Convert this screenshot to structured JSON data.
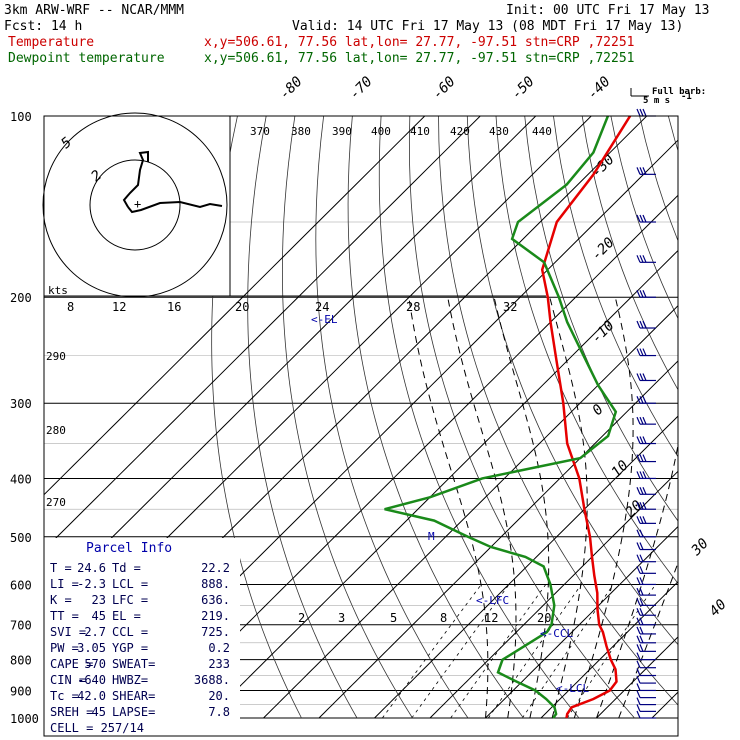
{
  "header": {
    "model": "3km ARW-WRF -- NCAR/MMM",
    "init": "Init: 00 UTC Fri 17 May 13",
    "fcst": "Fcst:    14 h",
    "valid": "Valid: 14 UTC Fri 17 May 13 (08 MDT Fri 17 May 13)",
    "temp_label": "Temperature",
    "temp_info": "x,y=506.61, 77.56   lat,lon= 27.77, -97.51   stn=CRP ,72251",
    "dew_label": "Dewpoint temperature",
    "dew_info": "x,y=506.61, 77.56   lat,lon= 27.77, -97.51   stn=CRP ,72251"
  },
  "colors": {
    "temperature": "#e60000",
    "dewpoint": "#1a8a1a",
    "info_text": "#000066",
    "barbs": "#000080",
    "frame": "#000000"
  },
  "barb_legend": {
    "line1": "Full barb:",
    "line2": "5 m s",
    "sup": "-1"
  },
  "hodograph": {
    "ring_labels": [
      "5",
      "2"
    ],
    "kts_label": "kts"
  },
  "mixing_ratio_labels": [
    "8",
    "12",
    "16",
    "20",
    "24",
    "28",
    "32"
  ],
  "theta_labels": [
    "370",
    "380",
    "390",
    "400",
    "410",
    "420",
    "430",
    "440"
  ],
  "theta_left_labels": [
    "290",
    "280",
    "270"
  ],
  "mixing_lower_labels": [
    "2",
    "3",
    "5",
    "8",
    "12",
    "20"
  ],
  "level_markers": {
    "el": "<-EL",
    "lfc": "<-LFC",
    "ccl": "<-CCL",
    "lcl": "<-LCL",
    "m": "M"
  },
  "parcel_info": {
    "title": "Parcel Info",
    "rows": [
      [
        "T =",
        "24.6",
        "Td =",
        "22.2"
      ],
      [
        "LI =",
        "-2.3",
        "LCL =",
        "888."
      ],
      [
        "K =",
        "23",
        "LFC =",
        "636."
      ],
      [
        "TT =",
        "45",
        "EL =",
        "219."
      ],
      [
        "SVI =",
        "2.7",
        "CCL =",
        "725."
      ],
      [
        "PW =",
        "3.05",
        "YGP =",
        "0.2"
      ],
      [
        "CAPE =",
        "570",
        "SWEAT=",
        "233"
      ],
      [
        "CIN =",
        "-640",
        "HWBZ=",
        "3688."
      ],
      [
        "Tc =",
        "42.0",
        "SHEAR=",
        "20."
      ],
      [
        "SREH =",
        "45",
        "LAPSE=",
        "7.8"
      ]
    ],
    "cell": "CELL = 257/14"
  },
  "chart_data": {
    "type": "line",
    "title": "",
    "ylabel": "",
    "xlabel": "",
    "pressure_levels": [
      "100",
      "200",
      "300",
      "400",
      "500",
      "600",
      "700",
      "800",
      "900",
      "1000"
    ],
    "isotherm_labels": [
      "-80",
      "-70",
      "-60",
      "-50",
      "-40",
      "-30",
      "-20",
      "-10",
      "0",
      "10",
      "20",
      "30",
      "40"
    ],
    "y_scale": "log-pressure",
    "grid": true,
    "series": [
      {
        "name": "Temperature",
        "points": [
          [
            1000,
            24.6
          ],
          [
            985,
            24.0
          ],
          [
            960,
            23.6
          ],
          [
            930,
            26.0
          ],
          [
            900,
            27.4
          ],
          [
            870,
            27.0
          ],
          [
            830,
            24.6
          ],
          [
            800,
            22.0
          ],
          [
            760,
            18.8
          ],
          [
            720,
            15.6
          ],
          [
            700,
            13.6
          ],
          [
            660,
            10.5
          ],
          [
            620,
            7.5
          ],
          [
            580,
            3.8
          ],
          [
            540,
            0.0
          ],
          [
            500,
            -4.0
          ],
          [
            450,
            -10.0
          ],
          [
            400,
            -16.5
          ],
          [
            350,
            -25.0
          ],
          [
            300,
            -33.0
          ],
          [
            250,
            -43.0
          ],
          [
            220,
            -50.0
          ],
          [
            200,
            -55.0
          ],
          [
            180,
            -61.0
          ],
          [
            150,
            -67.0
          ],
          [
            125,
            -69.0
          ],
          [
            100,
            -73.0
          ]
        ]
      },
      {
        "name": "Dewpoint temperature",
        "points": [
          [
            1000,
            22.2
          ],
          [
            985,
            22.0
          ],
          [
            960,
            20.5
          ],
          [
            930,
            17.5
          ],
          [
            900,
            14.0
          ],
          [
            870,
            9.0
          ],
          [
            840,
            4.0
          ],
          [
            800,
            2.5
          ],
          [
            760,
            4.0
          ],
          [
            720,
            5.5
          ],
          [
            700,
            5.0
          ],
          [
            650,
            2.0
          ],
          [
            600,
            -2.5
          ],
          [
            560,
            -7.0
          ],
          [
            540,
            -12.0
          ],
          [
            520,
            -20.0
          ],
          [
            500,
            -26.0
          ],
          [
            470,
            -35.0
          ],
          [
            450,
            -46.0
          ],
          [
            430,
            -40.0
          ],
          [
            400,
            -34.0
          ],
          [
            370,
            -20.0
          ],
          [
            340,
            -19.0
          ],
          [
            310,
            -22.0
          ],
          [
            280,
            -30.0
          ],
          [
            250,
            -38.0
          ],
          [
            220,
            -47.0
          ],
          [
            200,
            -53.0
          ],
          [
            175,
            -62.0
          ],
          [
            160,
            -72.0
          ],
          [
            150,
            -74.0
          ],
          [
            130,
            -72.0
          ],
          [
            115,
            -73.0
          ],
          [
            100,
            -77.0
          ]
        ]
      }
    ]
  }
}
